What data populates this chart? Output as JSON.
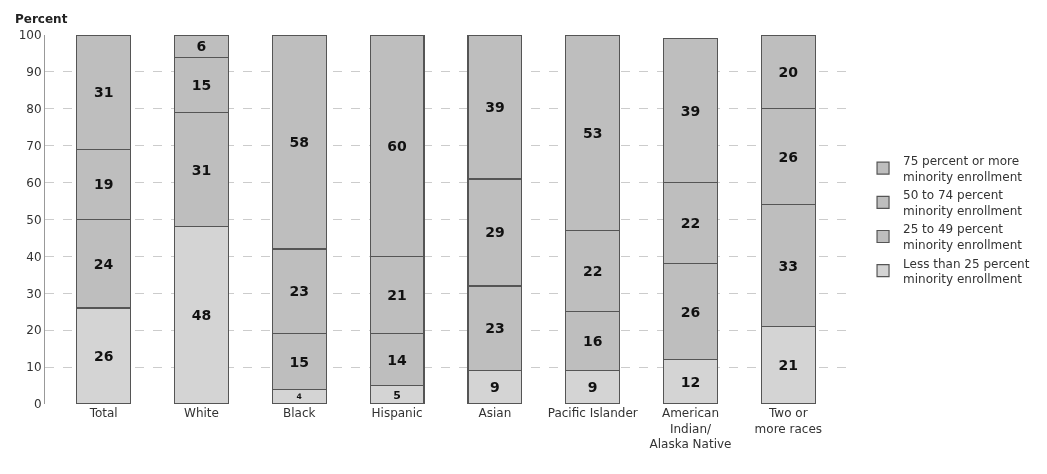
{
  "chart_data": {
    "type": "bar",
    "stacked": true,
    "ylabel": "Percent",
    "categories": [
      "Total",
      "White",
      "Black",
      "Hispanic",
      "Asian",
      "Pacific Islander",
      "American\nIndian/\nAlaska Native",
      "Two or\nmore races"
    ],
    "series": [
      {
        "name": "Less than 25 percent\nminority enrollment",
        "color": "#d4d4d4",
        "values": [
          26,
          48,
          4,
          5,
          9,
          9,
          12,
          21
        ]
      },
      {
        "name": "25 to 49 percent\nminority enrollment",
        "color": "#bebebe",
        "values": [
          24,
          31,
          15,
          14,
          23,
          16,
          26,
          33
        ]
      },
      {
        "name": "50 to 74 percent\nminority enrollment",
        "color": "#bebebe",
        "values": [
          19,
          15,
          23,
          21,
          29,
          22,
          22,
          26
        ]
      },
      {
        "name": "75 percent or more\nminority enrollment",
        "color": "#bebebe",
        "values": [
          31,
          6,
          58,
          60,
          39,
          53,
          39,
          20
        ]
      }
    ],
    "ylim": [
      0,
      100
    ],
    "yticks": [
      0,
      10,
      20,
      30,
      40,
      50,
      60,
      70,
      80,
      90,
      100
    ],
    "grid": "y",
    "legend": "right",
    "data_labels": true
  }
}
